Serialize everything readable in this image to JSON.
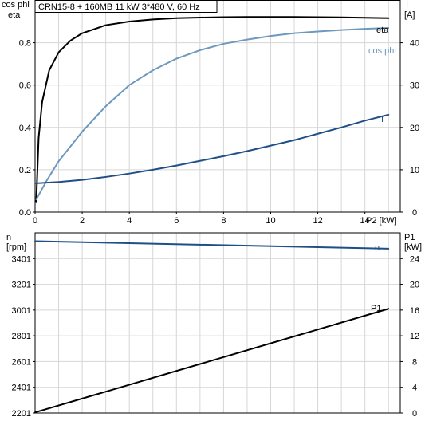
{
  "chart_data": [
    {
      "type": "line",
      "title": "CRN15-8 + 160MB   11 kW   3*480 V, 60 Hz",
      "xlabel": "P2 [kW]",
      "ylabel_left": [
        "cos phi",
        "eta"
      ],
      "ylabel_right": [
        "I",
        "[A]"
      ],
      "xlim": [
        0,
        15.5
      ],
      "x_ticks": [
        0,
        2,
        4,
        6,
        8,
        10,
        12,
        14
      ],
      "ylim_left": [
        0,
        1.0
      ],
      "y_ticks_left": [
        0.0,
        0.2,
        0.4,
        0.6,
        0.8
      ],
      "ylim_right": [
        0,
        50
      ],
      "y_ticks_right": [
        0,
        10,
        20,
        30,
        40
      ],
      "grid": true,
      "series": [
        {
          "name": "eta",
          "axis": "left",
          "color": "#000000",
          "x": [
            0.05,
            0.15,
            0.3,
            0.6,
            1.0,
            1.5,
            2,
            3,
            4,
            5,
            6,
            7,
            8,
            9,
            10,
            11,
            12,
            13,
            14,
            15
          ],
          "y": [
            0.05,
            0.35,
            0.52,
            0.67,
            0.755,
            0.81,
            0.845,
            0.883,
            0.9,
            0.91,
            0.916,
            0.919,
            0.921,
            0.922,
            0.922,
            0.922,
            0.921,
            0.92,
            0.918,
            0.916
          ]
        },
        {
          "name": "cos phi",
          "axis": "left",
          "color": "#6e98bd",
          "x": [
            0.05,
            0.5,
            1,
            2,
            3,
            4,
            5,
            6,
            7,
            8,
            9,
            10,
            11,
            12,
            13,
            14,
            15
          ],
          "y": [
            0.06,
            0.15,
            0.24,
            0.38,
            0.5,
            0.6,
            0.67,
            0.725,
            0.765,
            0.795,
            0.815,
            0.832,
            0.845,
            0.853,
            0.86,
            0.866,
            0.87
          ]
        },
        {
          "name": "I",
          "axis": "right",
          "color": "#1f4f87",
          "x": [
            0.05,
            1,
            2,
            3,
            4,
            5,
            6,
            7,
            8,
            9,
            10,
            11,
            12,
            13,
            14,
            15
          ],
          "y": [
            6.8,
            7.1,
            7.6,
            8.3,
            9.1,
            10.0,
            11.0,
            12.1,
            13.2,
            14.4,
            15.7,
            17.0,
            18.5,
            20.0,
            21.6,
            23.0
          ]
        }
      ]
    },
    {
      "type": "line",
      "xlim": [
        0,
        15.5
      ],
      "x_ticks": [
        0,
        2,
        4,
        6,
        8,
        10,
        12,
        14
      ],
      "ylabel_left": [
        "n",
        "[rpm]"
      ],
      "ylabel_right": [
        "P1",
        "[kW]"
      ],
      "ylim_left": [
        2201,
        3601
      ],
      "y_ticks_left": [
        2201,
        2401,
        2601,
        2801,
        3001,
        3201,
        3401
      ],
      "ylim_right": [
        0,
        28
      ],
      "y_ticks_right": [
        0,
        4,
        8,
        12,
        16,
        20,
        24
      ],
      "grid": true,
      "series": [
        {
          "name": "n",
          "axis": "left",
          "color": "#1f4f87",
          "x": [
            0,
            15
          ],
          "y": [
            3536,
            3478
          ]
        },
        {
          "name": "P1",
          "axis": "right",
          "color": "#000000",
          "x": [
            0,
            15
          ],
          "y": [
            0.1,
            16.2
          ]
        }
      ]
    }
  ]
}
